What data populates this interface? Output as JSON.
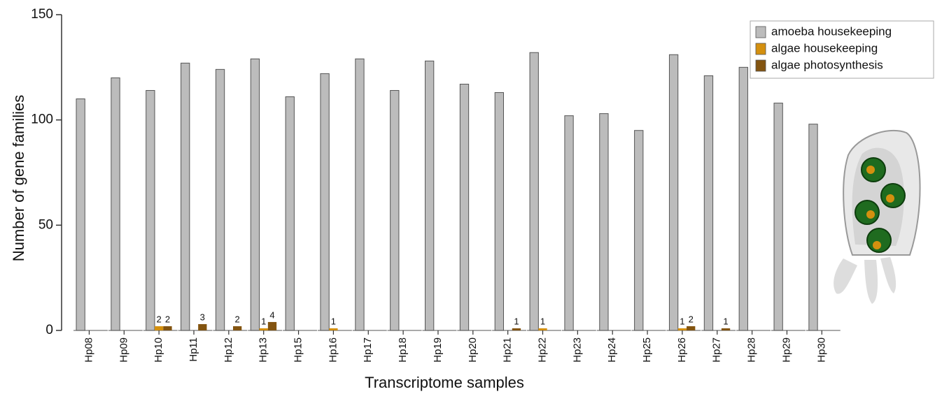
{
  "chart_data": {
    "type": "bar",
    "x_label": "Transcriptome samples",
    "y_label": "Number of gene families",
    "categories": [
      "Hp08",
      "Hp09",
      "Hp10",
      "Hp11",
      "Hp12",
      "Hp13",
      "Hp15",
      "Hp16",
      "Hp17",
      "Hp18",
      "Hp19",
      "Hp20",
      "Hp21",
      "Hp22",
      "Hp23",
      "Hp24",
      "Hp25",
      "Hp26",
      "Hp27",
      "Hp28",
      "Hp29",
      "Hp30"
    ],
    "series": [
      {
        "name": "amoeba housekeeping",
        "color": "#bcbcbc",
        "values": [
          110,
          120,
          114,
          127,
          124,
          129,
          111,
          122,
          129,
          114,
          128,
          117,
          113,
          132,
          102,
          103,
          95,
          131,
          121,
          125,
          108,
          98
        ]
      },
      {
        "name": "algae housekeeping",
        "color": "#d4900f",
        "values": [
          0,
          0,
          2,
          0,
          0,
          1,
          0,
          1,
          0,
          0,
          0,
          0,
          0,
          1,
          0,
          0,
          0,
          1,
          0,
          0,
          0,
          0
        ]
      },
      {
        "name": "algae photosynthesis",
        "color": "#835410",
        "values": [
          0,
          0,
          2,
          3,
          2,
          4,
          0,
          0,
          0,
          0,
          0,
          0,
          1,
          0,
          0,
          0,
          0,
          2,
          1,
          0,
          0,
          0
        ]
      }
    ],
    "ylim": [
      0,
      150
    ],
    "yticks": [
      0,
      50,
      100,
      150
    ],
    "legend": "top-right"
  }
}
